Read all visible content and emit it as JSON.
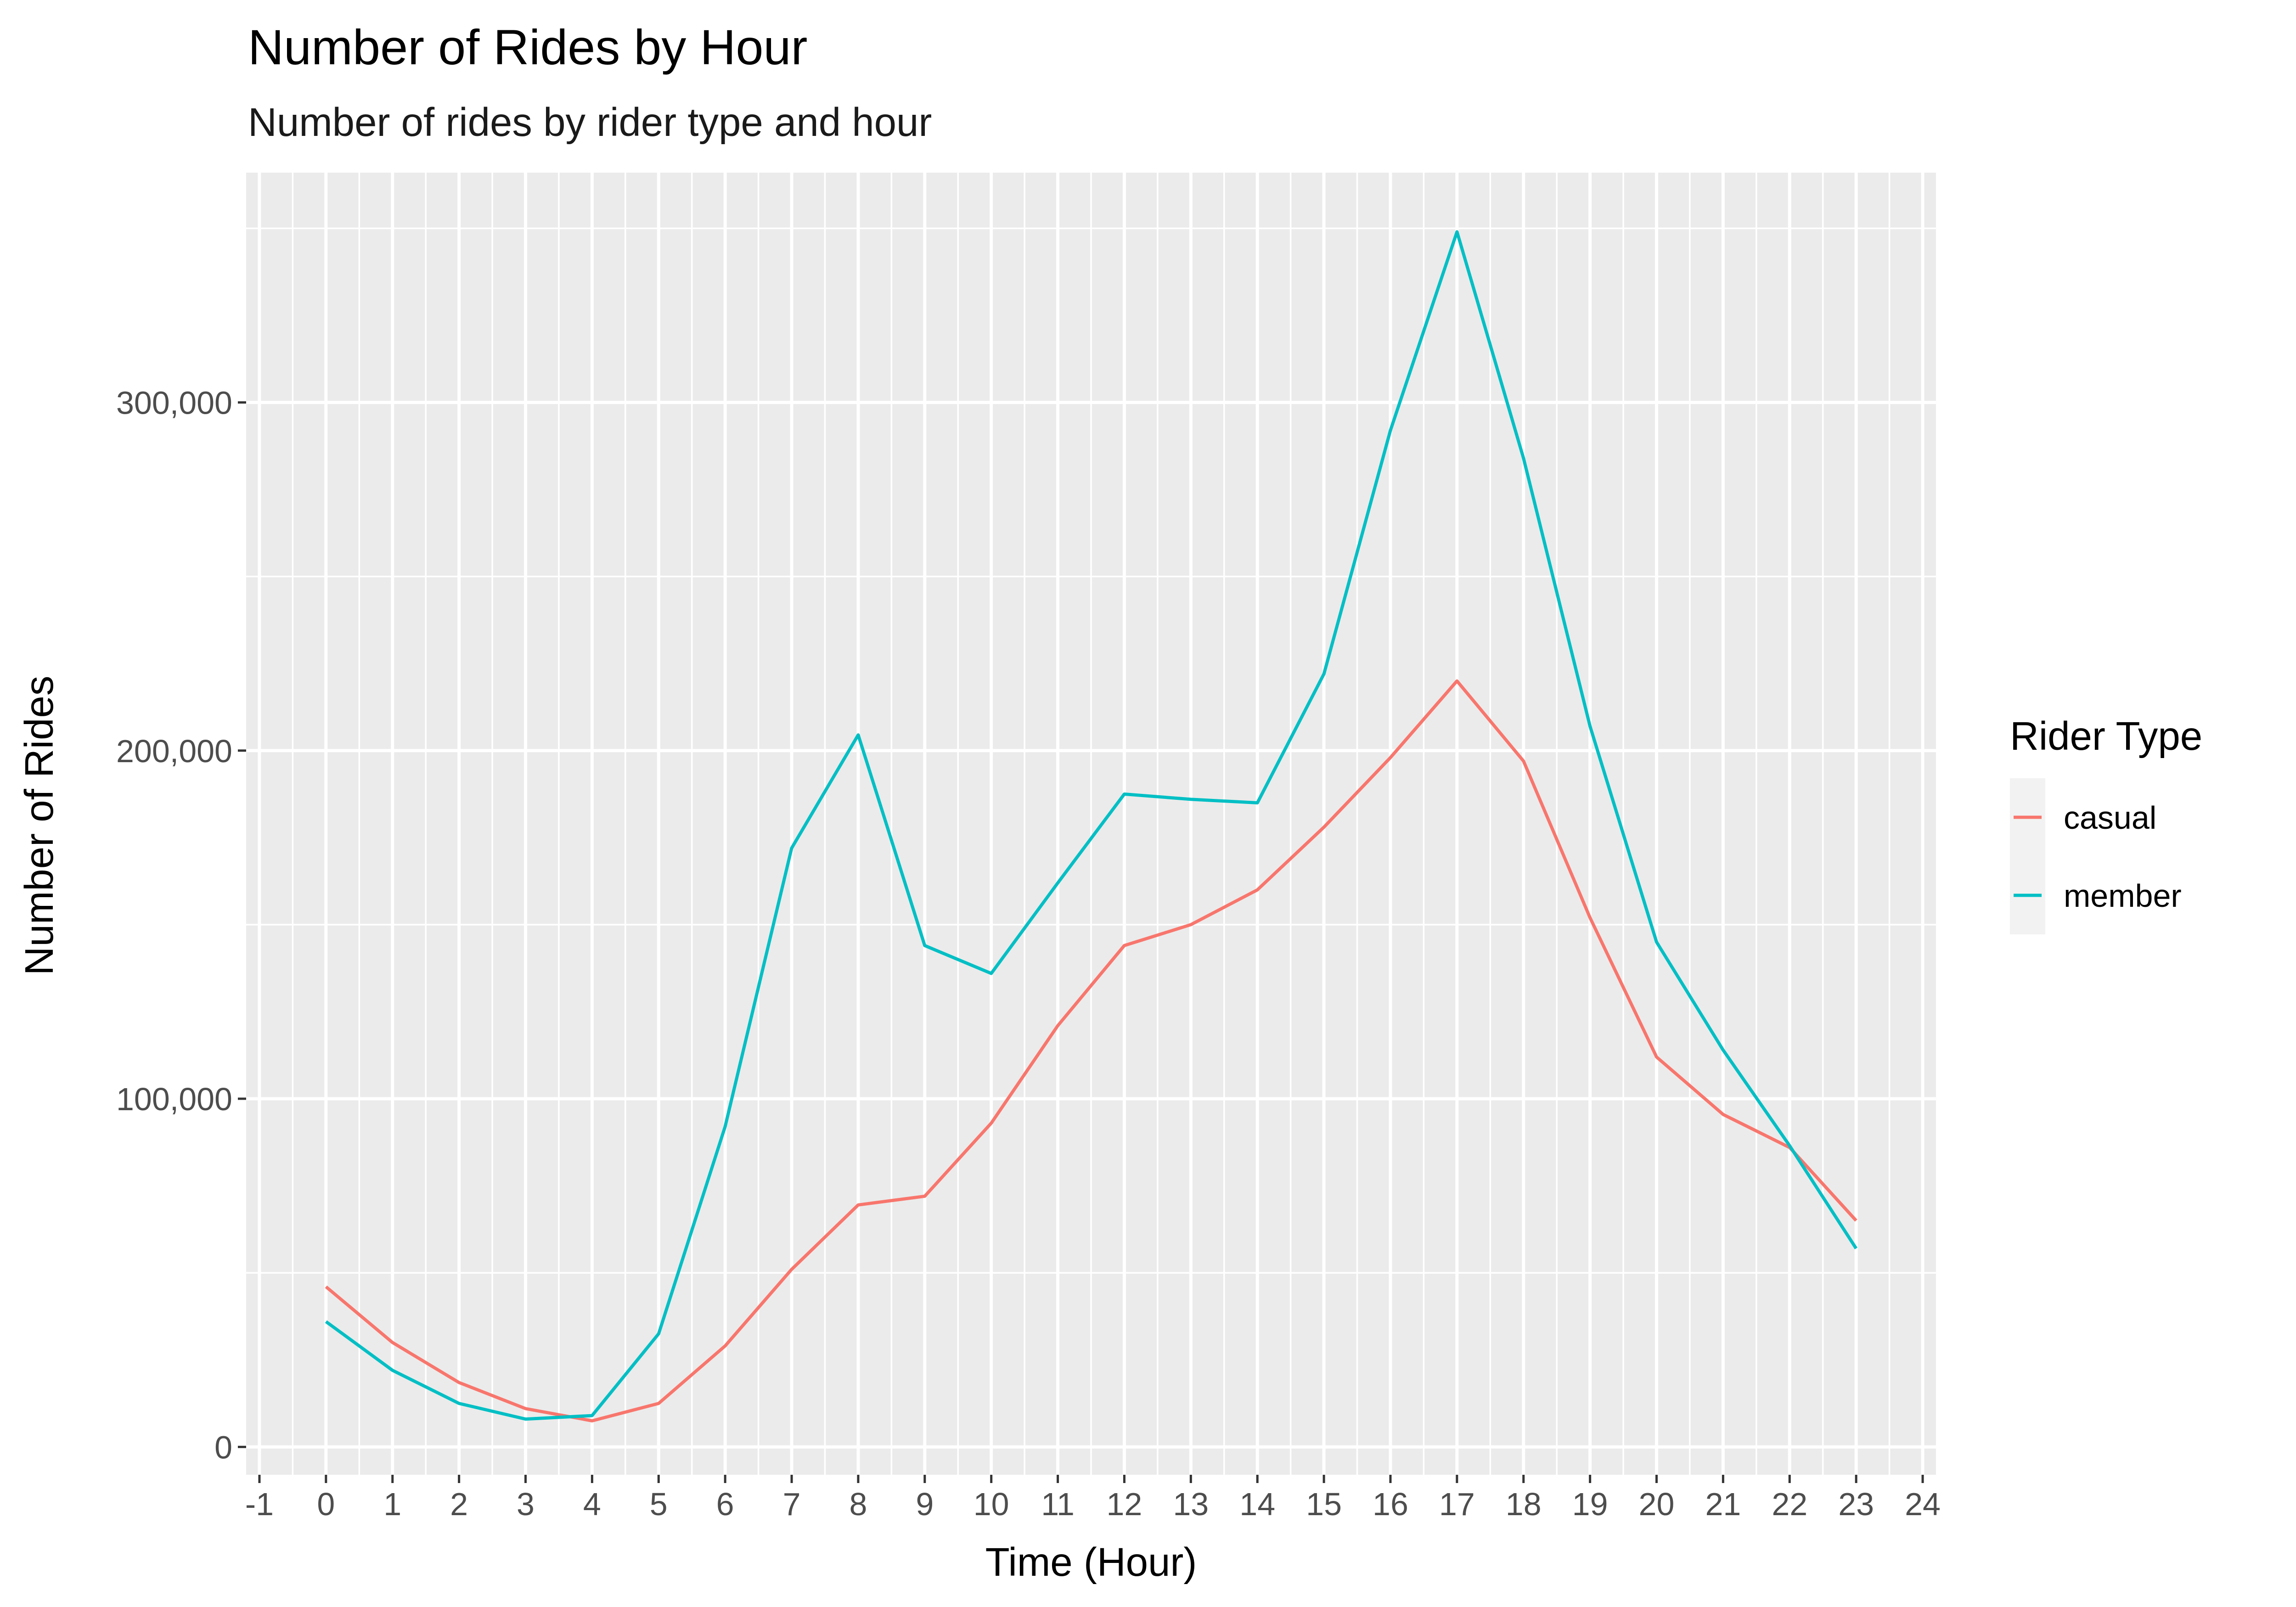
{
  "chart_data": {
    "type": "line",
    "title": "Number of Rides by Hour",
    "subtitle": "Number of rides by rider type and hour",
    "xlabel": "Time (Hour)",
    "ylabel": "Number of Rides",
    "x": [
      0,
      1,
      2,
      3,
      4,
      5,
      6,
      7,
      8,
      9,
      10,
      11,
      12,
      13,
      14,
      15,
      16,
      17,
      18,
      19,
      20,
      21,
      22,
      23
    ],
    "x_ticks": [
      "-1",
      "0",
      "1",
      "2",
      "3",
      "4",
      "5",
      "6",
      "7",
      "8",
      "9",
      "10",
      "11",
      "12",
      "13",
      "14",
      "15",
      "16",
      "17",
      "18",
      "19",
      "20",
      "21",
      "22",
      "23",
      "24"
    ],
    "y_ticks": [
      "0",
      "100,000",
      "200,000",
      "300,000"
    ],
    "xlim": [
      -1.2,
      24.2
    ],
    "ylim": [
      -8000,
      366000
    ],
    "grid": true,
    "legend": {
      "title": "Rider Type",
      "placement": "right"
    },
    "series": [
      {
        "name": "casual",
        "color": "#F8766D",
        "values": [
          46000,
          30000,
          18500,
          11000,
          7500,
          12500,
          29000,
          51000,
          69500,
          72000,
          93000,
          121000,
          144000,
          150000,
          160000,
          178000,
          198000,
          220000,
          197000,
          152000,
          112000,
          95500,
          86000,
          65000
        ]
      },
      {
        "name": "member",
        "color": "#00BFC4",
        "values": [
          36000,
          22000,
          12500,
          8000,
          9000,
          32500,
          92000,
          172000,
          204500,
          144000,
          136000,
          162000,
          187500,
          186000,
          185000,
          222000,
          292000,
          349000,
          284000,
          207000,
          145000,
          114000,
          86500,
          57000
        ]
      }
    ]
  }
}
